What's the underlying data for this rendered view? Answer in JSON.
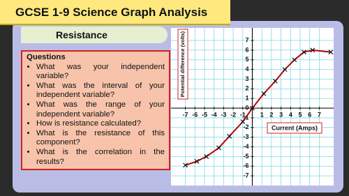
{
  "header": {
    "title": "GCSE 1-9 Science Graph Analysis",
    "subtitle": "Resistance"
  },
  "questions": {
    "heading": "Questions",
    "items": [
      "What was your independent variable?",
      "What was the interval of your independent variable?",
      "What was the range of your independent variable?",
      "How is resistance calculated?",
      "What is the resistance of this component?",
      "What is the correlation in the results?"
    ]
  },
  "chart_data": {
    "type": "line",
    "x_label": "Current (Amps)",
    "y_label": "Potential difference (volts)",
    "x": [
      -7,
      -5.8,
      -4.8,
      -3.5,
      -2.4,
      -1,
      0,
      1.2,
      2.4,
      3.4,
      4.4,
      5.4,
      6.3,
      8.2
    ],
    "values": [
      -5.9,
      -5.5,
      -5,
      -4.1,
      -2.9,
      -1.4,
      0,
      1.5,
      2.8,
      4,
      5,
      5.8,
      6,
      5.8
    ],
    "color": "#c00000",
    "xlim": [
      -8.5,
      8.5
    ],
    "ylim": [
      -8,
      8.3
    ],
    "xticks": [
      -7,
      -6,
      -5,
      -4,
      -3,
      -2,
      -1,
      1,
      2,
      3,
      4,
      5,
      6,
      7
    ],
    "yticks": [
      -7,
      -6,
      -5,
      -4,
      -3,
      -2,
      -1,
      0,
      1,
      2,
      3,
      4,
      5,
      6,
      7
    ],
    "grid": true
  }
}
